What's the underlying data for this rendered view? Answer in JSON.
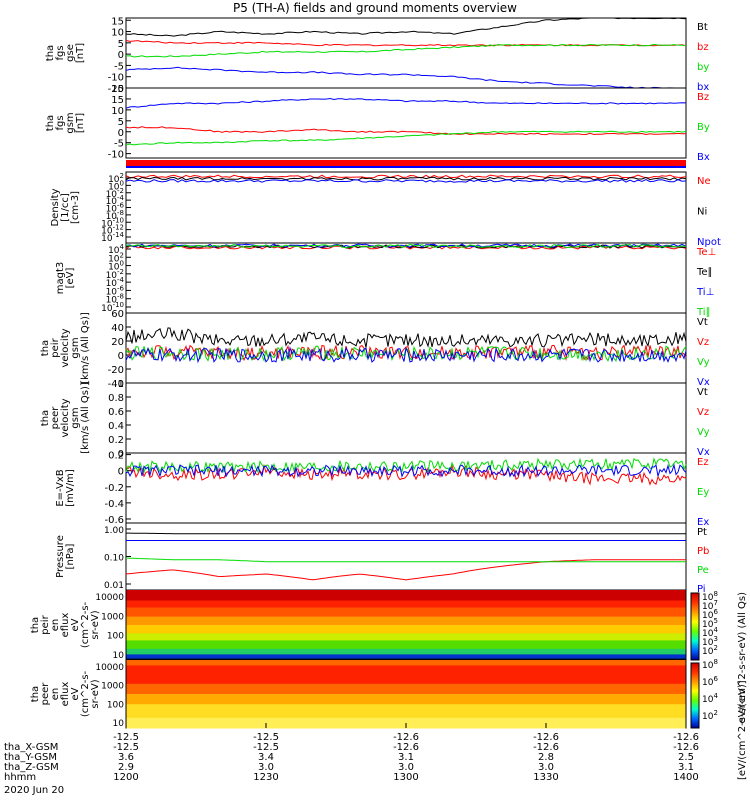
{
  "title": "P5 (TH-A) fields and ground moments overview",
  "colors": {
    "black": "#000000",
    "red": "#ff0000",
    "green": "#00dd00",
    "blue": "#0000ff"
  },
  "chart_data": [
    {
      "type": "line",
      "id": "fgs",
      "ylabel": [
        "tha",
        "fgs",
        "gse",
        "[nT]"
      ],
      "yticks": [
        15,
        10,
        5,
        0,
        -5,
        -10,
        -15
      ],
      "ylim": [
        -15,
        16
      ],
      "series": [
        {
          "name": "Bt",
          "color": "black",
          "values": [
            9,
            8,
            10,
            9,
            10,
            9,
            10,
            9,
            12,
            15,
            16,
            16,
            16
          ]
        },
        {
          "name": "bz",
          "color": "red",
          "values": [
            6,
            5,
            5,
            5,
            4,
            4,
            4,
            4,
            4,
            4,
            4,
            4,
            4
          ]
        },
        {
          "name": "by",
          "color": "green",
          "values": [
            -1,
            -1,
            0,
            1,
            1,
            1,
            2,
            3,
            4,
            4,
            4,
            4,
            4
          ]
        },
        {
          "name": "bx",
          "color": "blue",
          "values": [
            -7,
            -6,
            -7,
            -8,
            -8,
            -9,
            -9,
            -10,
            -12,
            -13,
            -14,
            -15,
            -15
          ]
        }
      ]
    },
    {
      "type": "line",
      "id": "fgs_gsm",
      "ylabel": [
        "tha",
        "fgs",
        "gsm",
        "[nT]"
      ],
      "yticks": [
        20,
        15,
        10,
        5,
        0,
        -5,
        -10
      ],
      "ylim": [
        -12,
        20
      ],
      "series": [
        {
          "name": "Bz",
          "color": "red",
          "values": [
            2,
            2,
            0,
            0,
            1,
            0,
            0,
            -1,
            -1,
            -1,
            -1,
            -1,
            -1
          ]
        },
        {
          "name": "By",
          "color": "green",
          "values": [
            -6,
            -5,
            -5,
            -4,
            -4,
            -3,
            -2,
            -1,
            0,
            0,
            0,
            0,
            0
          ]
        },
        {
          "name": "Bx",
          "color": "blue",
          "values": [
            11,
            13,
            13,
            14,
            15,
            15,
            14,
            14,
            13,
            13,
            13,
            13,
            13
          ]
        }
      ]
    },
    {
      "type": "line",
      "id": "density",
      "ylabel": [
        "Density",
        "[1/cc]",
        "[cm-3]"
      ],
      "ytick_labels": [
        "10^2",
        "10^0",
        "10^-2",
        "10^-4",
        "10^-6",
        "10^-8",
        "10^-10",
        "10^-12",
        "10^-14"
      ],
      "ylim": [
        -14,
        2
      ],
      "series": [
        {
          "name": "Ne",
          "color": "red",
          "values": [
            1,
            1,
            1,
            1,
            1,
            1,
            1,
            1,
            1,
            1,
            1,
            1,
            1
          ]
        },
        {
          "name": "Ni",
          "color": "black",
          "values": [
            0.5,
            0.5,
            0.5,
            0.5,
            0.5,
            0.5,
            0.5,
            0.5,
            0.5,
            0.5,
            0.5,
            0.5,
            0.5
          ]
        },
        {
          "name": "Npot",
          "color": "blue",
          "values": [
            0,
            0,
            0,
            0,
            0,
            0,
            0,
            0,
            0,
            0,
            0,
            0,
            0
          ]
        }
      ]
    },
    {
      "type": "line",
      "id": "temp",
      "ylabel": [
        "magt3",
        "[eV]"
      ],
      "ytick_labels": [
        "10^4",
        "10^2",
        "10^0",
        "10^-2",
        "10^-4",
        "10^-6",
        "10^-8",
        "10^-10"
      ],
      "ylim": [
        -10,
        4
      ],
      "series": [
        {
          "name": "Te⊥",
          "color": "red",
          "values": [
            3.1,
            3.1,
            3.1,
            3.1,
            3.1,
            3.1,
            3.1,
            3.1,
            3.1,
            3.1,
            3.1,
            3.1,
            3.1
          ]
        },
        {
          "name": "Te∥",
          "color": "black",
          "values": [
            3.3,
            3.3,
            3.3,
            3.3,
            3.3,
            3.3,
            3.3,
            3.3,
            3.3,
            3.3,
            3.3,
            3.3,
            3.3
          ]
        },
        {
          "name": "Ti⊥",
          "color": "blue",
          "values": [
            3.5,
            3.5,
            3.5,
            3.5,
            3.5,
            3.5,
            3.5,
            3.5,
            3.5,
            3.5,
            3.5,
            3.5,
            3.5
          ]
        },
        {
          "name": "Ti∥",
          "color": "green",
          "values": [
            3.4,
            3.4,
            3.4,
            3.4,
            3.4,
            3.4,
            3.4,
            3.4,
            3.4,
            3.4,
            3.4,
            3.4,
            3.4
          ]
        }
      ]
    },
    {
      "type": "line",
      "id": "peir_vel",
      "ylabel": [
        "tha",
        "peir",
        "velocity",
        "gsm",
        "[km/s (All Qs)]"
      ],
      "yticks": [
        60,
        40,
        20,
        0,
        -20,
        -40
      ],
      "ylim": [
        -40,
        60
      ],
      "series": [
        {
          "name": "Vt",
          "color": "black",
          "values": [
            25,
            30,
            20,
            22,
            24,
            20,
            22,
            20,
            22,
            20,
            22,
            20,
            24
          ]
        },
        {
          "name": "Vz",
          "color": "red",
          "values": [
            5,
            4,
            3,
            3,
            4,
            5,
            3,
            4,
            5,
            4,
            3,
            4,
            5
          ]
        },
        {
          "name": "Vy",
          "color": "green",
          "values": [
            2,
            3,
            1,
            2,
            3,
            2,
            1,
            2,
            3,
            2,
            1,
            2,
            3
          ]
        },
        {
          "name": "Vx",
          "color": "blue",
          "values": [
            0,
            0,
            0,
            0,
            0,
            0,
            0,
            0,
            0,
            0,
            0,
            0,
            0
          ]
        }
      ]
    },
    {
      "type": "line",
      "id": "peer_vel",
      "ylabel": [
        "tha",
        "peer",
        "velocity",
        "gsm",
        "[km/s (All Qs)]"
      ],
      "yticks": [
        1.0,
        0.8,
        0.6,
        0.4,
        0.2,
        0.0
      ],
      "ylim": [
        0,
        1
      ],
      "series": [
        {
          "name": "Vt",
          "color": "black",
          "values": []
        },
        {
          "name": "Vz",
          "color": "red",
          "values": []
        },
        {
          "name": "Vy",
          "color": "green",
          "values": []
        },
        {
          "name": "Vx",
          "color": "blue",
          "values": []
        }
      ]
    },
    {
      "type": "line",
      "id": "efield",
      "ylabel": [
        "E=-VxB",
        "[mV/m]"
      ],
      "yticks": [
        0.2,
        0.0,
        -0.2,
        -0.4,
        -0.6
      ],
      "ylim": [
        -0.65,
        0.22
      ],
      "series": [
        {
          "name": "Ez",
          "color": "red",
          "values": [
            0,
            -0.05,
            -0.05,
            0,
            -0.05,
            -0.03,
            -0.05,
            0,
            -0.05,
            -0.05,
            -0.1,
            -0.1,
            -0.1
          ]
        },
        {
          "name": "Ey",
          "color": "green",
          "values": [
            0.05,
            0.05,
            0.04,
            0.05,
            0.05,
            0.06,
            0.05,
            0.06,
            0.07,
            0.08,
            0.08,
            0.08,
            0.08
          ]
        },
        {
          "name": "Ex",
          "color": "blue",
          "values": [
            0,
            0,
            0,
            0,
            0,
            0,
            0,
            0,
            0,
            0,
            0,
            0,
            0
          ]
        }
      ]
    },
    {
      "type": "line",
      "id": "pressure",
      "yscale": "log",
      "ylabel": [
        "Pressure",
        "[nPa]"
      ],
      "ytick_labels": [
        "1.00",
        "0.10",
        "0.01"
      ],
      "ylim": [
        0.01,
        1
      ],
      "series": [
        {
          "name": "Pt",
          "color": "black",
          "values": [
            0.5,
            0.48,
            0.48,
            0.48,
            0.48,
            0.48,
            0.48,
            0.48,
            0.48,
            0.48,
            0.48,
            0.48,
            0.48
          ]
        },
        {
          "name": "Pb",
          "color": "red",
          "values": [
            0.03,
            0.04,
            0.025,
            0.03,
            0.02,
            0.03,
            0.02,
            0.03,
            0.05,
            0.07,
            0.08,
            0.08,
            0.08
          ]
        },
        {
          "name": "Pe",
          "color": "green",
          "values": [
            0.09,
            0.08,
            0.08,
            0.07,
            0.07,
            0.07,
            0.07,
            0.07,
            0.07,
            0.07,
            0.07,
            0.07,
            0.07
          ]
        },
        {
          "name": "Pi",
          "color": "blue",
          "values": [
            0.3,
            0.3,
            0.3,
            0.3,
            0.3,
            0.3,
            0.3,
            0.3,
            0.3,
            0.3,
            0.3,
            0.3,
            0.3
          ]
        }
      ]
    },
    {
      "type": "heatmap",
      "id": "peir_en",
      "ylabel": [
        "tha",
        "peir",
        "en",
        "eflux",
        "eV",
        "(cm^2-s-",
        "sr-eV)"
      ],
      "ytick_labels": [
        "10000",
        "1000",
        "100",
        "10"
      ]
    },
    {
      "type": "heatmap",
      "id": "peer_en",
      "ylabel": [
        "tha",
        "peer",
        "en",
        "eflux",
        "eV",
        "(cm^2-s-",
        "sr-eV)"
      ],
      "ytick_labels": [
        "10000",
        "1000",
        "100",
        "10"
      ]
    }
  ],
  "colorbar": {
    "ticks_top": [
      "10^8",
      "10^7",
      "10^6",
      "10^5",
      "10^4",
      "10^3",
      "10^2"
    ],
    "ticks_bottom": [
      "10^8",
      "10^6",
      "10^4",
      "10^2"
    ],
    "label": "[eV/(cm^2-s-sr-eV)]",
    "label_top": "eV/(cm^2-s-sr-eV) (All Qs)"
  },
  "xaxis": {
    "top_labels": [
      "-12.5",
      "-12.5",
      "-12.6",
      "-12.6",
      "-12.6"
    ],
    "rows": [
      {
        "name": "tha_X-GSM",
        "values": [
          "-12.5",
          "-12.5",
          "-12.6",
          "-12.6",
          "-12.6"
        ]
      },
      {
        "name": "tha_Y-GSM",
        "values": [
          "3.6",
          "3.4",
          "3.1",
          "2.8",
          "2.5"
        ]
      },
      {
        "name": "tha_Z-GSM",
        "values": [
          "2.9",
          "3.0",
          "3.0",
          "3.0",
          "3.1"
        ]
      },
      {
        "name": "hhmm",
        "values": [
          "1200",
          "1230",
          "1300",
          "1330",
          "1400"
        ]
      }
    ],
    "date": "2020 Jun 20"
  }
}
